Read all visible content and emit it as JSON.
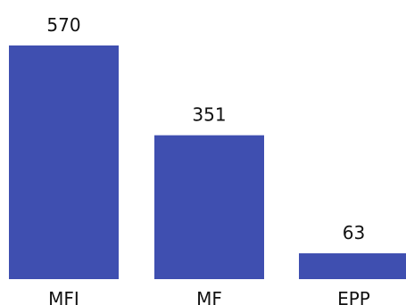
{
  "chart_data": {
    "type": "bar",
    "categories": [
      "MFI",
      "MF",
      "EPP"
    ],
    "values": [
      570,
      351,
      63
    ],
    "ylim": [
      0,
      570
    ],
    "bar_color": "#3f4fb0",
    "grid": false,
    "legend": "none",
    "data_labels": [
      "570",
      "351",
      "63"
    ]
  }
}
